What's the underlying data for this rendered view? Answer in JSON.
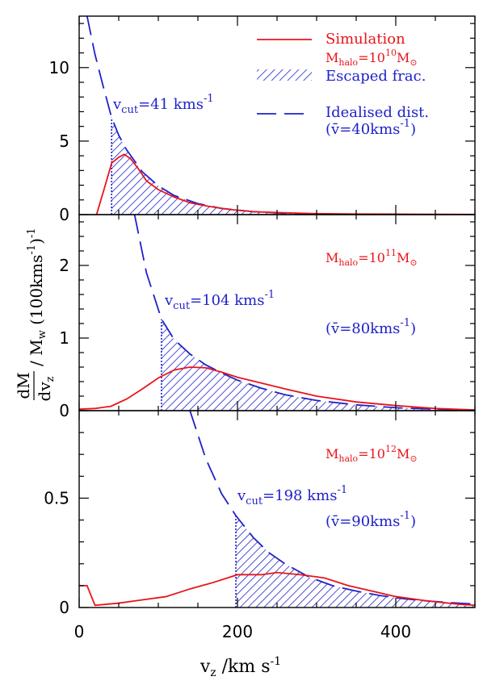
{
  "figure": {
    "xlabel_main": "v",
    "xlabel_sub": "z",
    "xlabel_rest": " /km s",
    "xlabel_sup": "-1",
    "ylabel": {
      "frac_num": "dM",
      "frac_den_main": "dv",
      "frac_den_sub": "z",
      "mid_main": " / M",
      "mid_sub": "w",
      "tail_main": " (100kms",
      "tail_sup1": "-1",
      "tail_paren": ")",
      "tail_sup2": "-1"
    },
    "legend": {
      "simulation": "Simulation",
      "escaped": "Escaped frac.",
      "idealised": "Idealised dist."
    }
  },
  "colors": {
    "simulation": "#e8141b",
    "idealised": "#1f22c8"
  },
  "chart_data": [
    {
      "type": "line",
      "panel": "top",
      "xlim": [
        0,
        500
      ],
      "ylim": [
        0,
        13.5
      ],
      "yticks": [
        0,
        5,
        10
      ],
      "xticks": [
        0,
        200,
        400
      ],
      "mhalo": {
        "prefix": "M",
        "sub": "halo",
        "eq": "=10",
        "exp": "10",
        "unit": "M",
        "unit_sub": "⊙"
      },
      "vcut": {
        "main": "v",
        "sub": "cut",
        "text": "=41  kms",
        "sup": "-1",
        "value": 41
      },
      "vbar": {
        "label": "(v̄=40kms",
        "sup": "-1",
        "close": ")",
        "value": 40
      },
      "series": [
        {
          "name": "Simulation",
          "x": [
            22,
            33,
            41,
            50,
            57,
            65,
            75,
            85,
            100,
            120,
            140,
            165,
            190,
            220,
            260,
            300,
            350,
            400,
            450,
            500
          ],
          "y": [
            0,
            2.0,
            3.5,
            3.9,
            4.1,
            3.8,
            3.1,
            2.3,
            1.7,
            1.2,
            0.8,
            0.55,
            0.35,
            0.2,
            0.12,
            0.07,
            0.04,
            0.03,
            0.02,
            0.01
          ]
        },
        {
          "name": "Idealised dist.",
          "x": [
            10,
            20,
            30,
            41,
            50,
            60,
            80,
            100,
            120,
            150,
            180,
            220,
            260,
            300,
            350,
            400,
            450,
            500
          ],
          "y": [
            13.5,
            10.9,
            8.8,
            6.6,
            5.4,
            4.4,
            2.9,
            1.95,
            1.3,
            0.75,
            0.42,
            0.2,
            0.09,
            0.045,
            0.02,
            0.01,
            0.005,
            0.002
          ]
        }
      ]
    },
    {
      "type": "line",
      "panel": "middle",
      "xlim": [
        0,
        500
      ],
      "ylim": [
        0,
        2.7
      ],
      "yticks": [
        0,
        1,
        2
      ],
      "xticks": [
        0,
        200,
        400
      ],
      "mhalo": {
        "prefix": "M",
        "sub": "halo",
        "eq": "=10",
        "exp": "11",
        "unit": "M",
        "unit_sub": "⊙"
      },
      "vcut": {
        "main": "v",
        "sub": "cut",
        "text": "=104  kms",
        "sup": "-1",
        "value": 104
      },
      "vbar": {
        "label": "(v̄=80kms",
        "sup": "-1",
        "close": ")",
        "value": 80
      },
      "series": [
        {
          "name": "Simulation",
          "x": [
            0,
            20,
            40,
            60,
            80,
            100,
            120,
            140,
            160,
            180,
            200,
            230,
            260,
            300,
            350,
            400,
            450,
            500
          ],
          "y": [
            0.02,
            0.03,
            0.06,
            0.16,
            0.3,
            0.45,
            0.56,
            0.6,
            0.59,
            0.53,
            0.46,
            0.38,
            0.3,
            0.2,
            0.12,
            0.07,
            0.03,
            0.01
          ]
        },
        {
          "name": "Idealised dist.",
          "x": [
            70,
            85,
            104,
            120,
            140,
            160,
            180,
            200,
            230,
            260,
            300,
            350,
            400,
            450,
            500
          ],
          "y": [
            2.7,
            1.9,
            1.26,
            0.98,
            0.78,
            0.63,
            0.52,
            0.42,
            0.31,
            0.22,
            0.14,
            0.08,
            0.04,
            0.02,
            0.008
          ]
        }
      ]
    },
    {
      "type": "line",
      "panel": "bottom",
      "xlim": [
        0,
        500
      ],
      "ylim": [
        0,
        0.9
      ],
      "yticks": [
        0,
        0.5
      ],
      "xticks": [
        0,
        200,
        400
      ],
      "mhalo": {
        "prefix": "M",
        "sub": "halo",
        "eq": "=10",
        "exp": "12",
        "unit": "M",
        "unit_sub": "⊙"
      },
      "vcut": {
        "main": "v",
        "sub": "cut",
        "text": "=198  kms",
        "sup": "-1",
        "value": 198
      },
      "vbar": {
        "label": "(v̄=90kms",
        "sup": "-1",
        "close": ")",
        "value": 90
      },
      "series": [
        {
          "name": "Simulation",
          "x": [
            0,
            10,
            20,
            50,
            80,
            110,
            140,
            170,
            200,
            230,
            250,
            280,
            310,
            340,
            370,
            400,
            440,
            480,
            500
          ],
          "y": [
            0.1,
            0.1,
            0.01,
            0.02,
            0.035,
            0.05,
            0.085,
            0.115,
            0.15,
            0.15,
            0.16,
            0.15,
            0.135,
            0.1,
            0.075,
            0.05,
            0.03,
            0.015,
            0.01
          ]
        },
        {
          "name": "Idealised dist.",
          "x": [
            140,
            160,
            180,
            198,
            220,
            240,
            260,
            290,
            320,
            350,
            380,
            410,
            440,
            470,
            500
          ],
          "y": [
            0.9,
            0.68,
            0.52,
            0.42,
            0.32,
            0.25,
            0.2,
            0.14,
            0.1,
            0.075,
            0.055,
            0.04,
            0.03,
            0.022,
            0.016
          ]
        }
      ]
    }
  ]
}
